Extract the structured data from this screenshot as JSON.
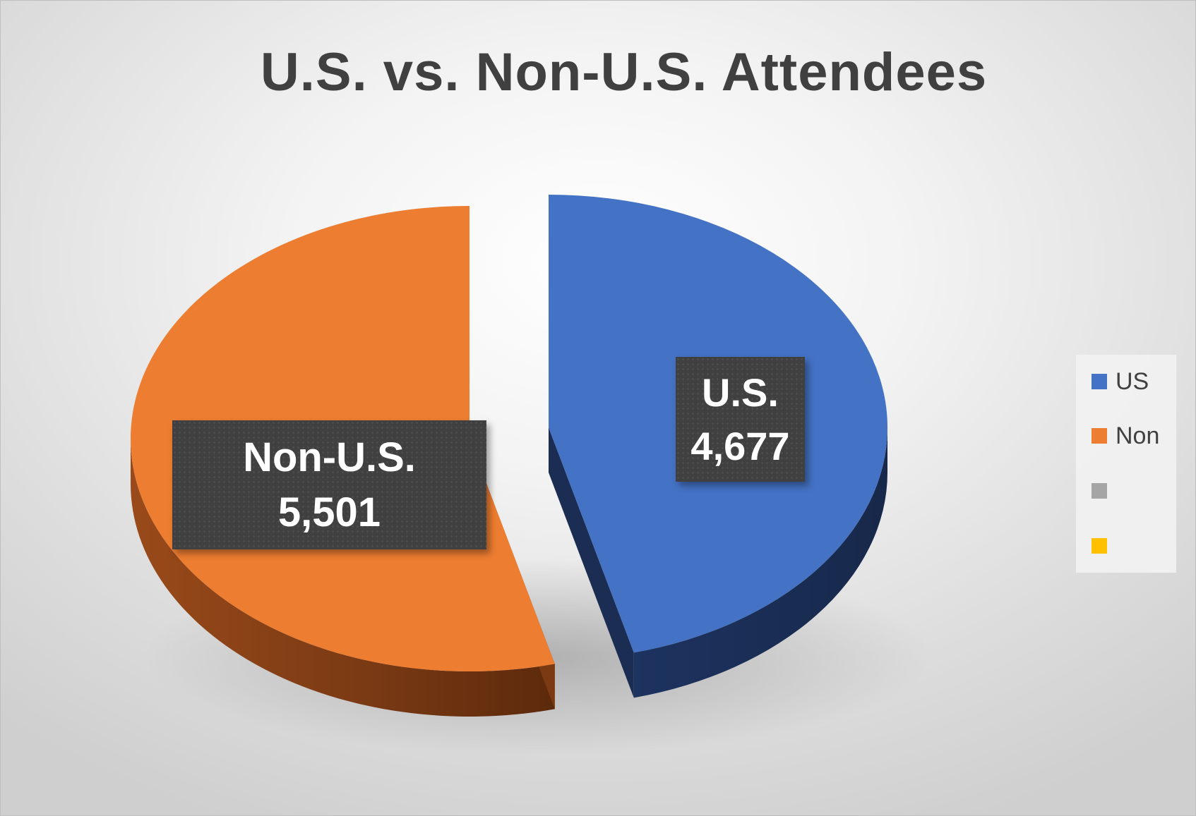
{
  "chart_data": {
    "type": "pie",
    "title": "U.S. vs. Non-U.S. Attendees",
    "slices": [
      {
        "name": "US",
        "label_name": "U.S.",
        "value": 4677,
        "value_label": "4,677",
        "color": "#4472C4",
        "side_color": "#1B2D52"
      },
      {
        "name": "Non",
        "label_name": "Non-U.S.",
        "value": 5501,
        "value_label": "5,501",
        "color": "#ED7D31",
        "side_color": "#7B3A12"
      }
    ],
    "legend": {
      "position": "right",
      "entries": [
        {
          "label": "US",
          "color": "#4472C4"
        },
        {
          "label": "Non",
          "color": "#ED7D31"
        },
        {
          "label": "",
          "color": "#A5A5A5"
        },
        {
          "label": "",
          "color": "#FFC000"
        }
      ]
    },
    "style": {
      "three_d": true,
      "exploded": true
    }
  }
}
